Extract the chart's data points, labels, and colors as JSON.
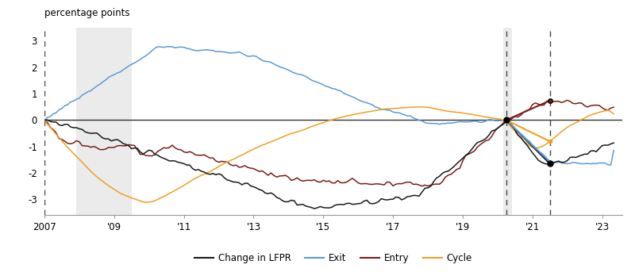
{
  "ylabel": "percentage points",
  "xlim_start": 2007.0,
  "xlim_end": 2023.58,
  "ylim": [
    -3.6,
    3.5
  ],
  "yticks": [
    -3,
    -2,
    -1,
    0,
    1,
    2,
    3
  ],
  "xtick_years": [
    2007,
    2009,
    2011,
    2013,
    2015,
    2017,
    2019,
    2021,
    2023
  ],
  "xtick_labels": [
    "2007",
    "'09",
    "'11",
    "'13",
    "'15",
    "'17",
    "'19",
    "'21",
    "'23"
  ],
  "recession1_start": 2007.917,
  "recession1_end": 2009.5,
  "recession2_start": 2020.167,
  "recession2_end": 2020.42,
  "vline1": 2007.0,
  "vline2": 2020.25,
  "vline3": 2021.5,
  "colors": {
    "change_lfpr": "#1a1a1a",
    "exit": "#5b9bd5",
    "entry": "#7b1c1c",
    "cycle": "#f0a020",
    "zero_line": "#333333",
    "recession_shade": "#ebebeb",
    "vline_color": "#444444"
  },
  "legend": [
    "Change in LFPR",
    "Exit",
    "Entry",
    "Cycle"
  ],
  "figsize": [
    8.0,
    3.48
  ],
  "dpi": 100
}
